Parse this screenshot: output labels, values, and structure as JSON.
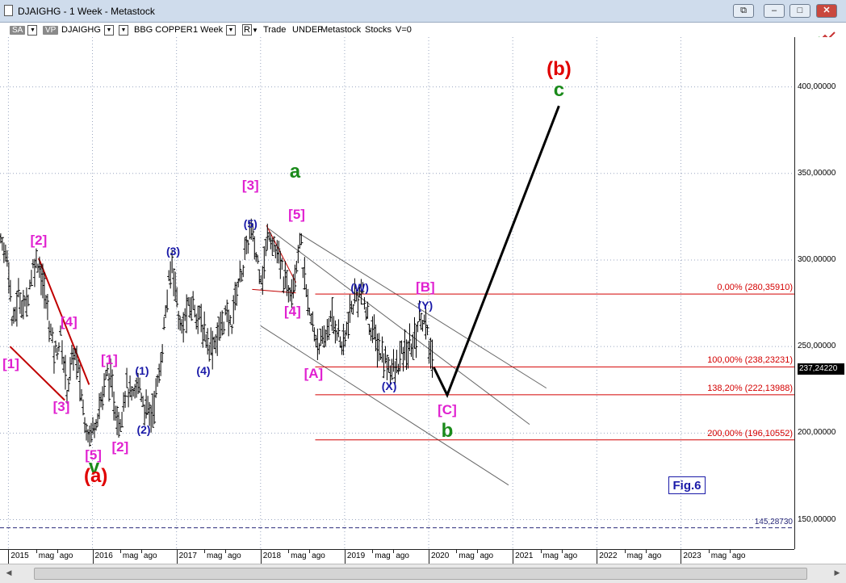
{
  "window": {
    "title": "DJAIGHG - 1 Week - Metastock"
  },
  "toolbar": {
    "sa": "SA",
    "vp": "VP",
    "symbol": "DJAIGHG",
    "name": "BBG COPPER",
    "period": "1 Week",
    "r": "R",
    "mode": "Trade",
    "undef": "UNDEF",
    "source": "Metastock",
    "type": "Stocks",
    "v": "V=0"
  },
  "chart_data": {
    "type": "bar",
    "title": "",
    "xlabel": "",
    "ylabel": "",
    "ylim": [
      140,
      425
    ],
    "xlim": [
      2014.9,
      2024.35
    ],
    "y_ticks": [
      {
        "v": 400,
        "label": "400,00000"
      },
      {
        "v": 350,
        "label": "350,00000"
      },
      {
        "v": 300,
        "label": "300,00000"
      },
      {
        "v": 250,
        "label": "250,00000"
      },
      {
        "v": 200,
        "label": "200,00000"
      },
      {
        "v": 150,
        "label": "150,00000"
      }
    ],
    "x_ticks": [
      {
        "t": 2015.0,
        "label": "2015"
      },
      {
        "t": 2015.33,
        "label": "mag"
      },
      {
        "t": 2015.58,
        "label": "ago"
      },
      {
        "t": 2016.0,
        "label": "2016"
      },
      {
        "t": 2016.33,
        "label": "mag"
      },
      {
        "t": 2016.58,
        "label": "ago"
      },
      {
        "t": 2017.0,
        "label": "2017"
      },
      {
        "t": 2017.33,
        "label": "mag"
      },
      {
        "t": 2017.58,
        "label": "ago"
      },
      {
        "t": 2018.0,
        "label": "2018"
      },
      {
        "t": 2018.33,
        "label": "mag"
      },
      {
        "t": 2018.58,
        "label": "ago"
      },
      {
        "t": 2019.0,
        "label": "2019"
      },
      {
        "t": 2019.33,
        "label": "mag"
      },
      {
        "t": 2019.58,
        "label": "ago"
      },
      {
        "t": 2020.0,
        "label": "2020"
      },
      {
        "t": 2020.33,
        "label": "mag"
      },
      {
        "t": 2020.58,
        "label": "ago"
      },
      {
        "t": 2021.0,
        "label": "2021"
      },
      {
        "t": 2021.33,
        "label": "mag"
      },
      {
        "t": 2021.58,
        "label": "ago"
      },
      {
        "t": 2022.0,
        "label": "2022"
      },
      {
        "t": 2022.33,
        "label": "mag"
      },
      {
        "t": 2022.58,
        "label": "ago"
      },
      {
        "t": 2023.0,
        "label": "2023"
      },
      {
        "t": 2023.33,
        "label": "mag"
      },
      {
        "t": 2023.58,
        "label": "ago"
      }
    ],
    "price_path": [
      [
        2014.87,
        315
      ],
      [
        2015.0,
        300
      ],
      [
        2015.05,
        260
      ],
      [
        2015.12,
        280
      ],
      [
        2015.2,
        272
      ],
      [
        2015.3,
        298
      ],
      [
        2015.36,
        300
      ],
      [
        2015.45,
        275
      ],
      [
        2015.55,
        245
      ],
      [
        2015.62,
        255
      ],
      [
        2015.7,
        225
      ],
      [
        2015.78,
        248
      ],
      [
        2015.85,
        230
      ],
      [
        2015.9,
        210
      ],
      [
        2015.97,
        198
      ],
      [
        2016.05,
        210
      ],
      [
        2016.12,
        222
      ],
      [
        2016.18,
        236
      ],
      [
        2016.25,
        220
      ],
      [
        2016.32,
        205
      ],
      [
        2016.4,
        228
      ],
      [
        2016.48,
        218
      ],
      [
        2016.55,
        230
      ],
      [
        2016.62,
        215
      ],
      [
        2016.7,
        210
      ],
      [
        2016.8,
        235
      ],
      [
        2016.88,
        275
      ],
      [
        2016.95,
        300
      ],
      [
        2017.05,
        258
      ],
      [
        2017.12,
        270
      ],
      [
        2017.2,
        275
      ],
      [
        2017.3,
        262
      ],
      [
        2017.4,
        250
      ],
      [
        2017.48,
        255
      ],
      [
        2017.58,
        268
      ],
      [
        2017.65,
        262
      ],
      [
        2017.72,
        285
      ],
      [
        2017.8,
        298
      ],
      [
        2017.88,
        318
      ],
      [
        2017.95,
        302
      ],
      [
        2018.02,
        290
      ],
      [
        2018.1,
        318
      ],
      [
        2018.18,
        305
      ],
      [
        2018.25,
        295
      ],
      [
        2018.32,
        282
      ],
      [
        2018.4,
        290
      ],
      [
        2018.47,
        315
      ],
      [
        2018.52,
        288
      ],
      [
        2018.58,
        268
      ],
      [
        2018.66,
        255
      ],
      [
        2018.74,
        250
      ],
      [
        2018.82,
        265
      ],
      [
        2018.9,
        262
      ],
      [
        2018.98,
        248
      ],
      [
        2019.04,
        264
      ],
      [
        2019.12,
        278
      ],
      [
        2019.2,
        282
      ],
      [
        2019.28,
        265
      ],
      [
        2019.36,
        255
      ],
      [
        2019.44,
        245
      ],
      [
        2019.52,
        240
      ],
      [
        2019.6,
        235
      ],
      [
        2019.68,
        245
      ],
      [
        2019.76,
        248
      ],
      [
        2019.84,
        255
      ],
      [
        2019.9,
        270
      ],
      [
        2019.96,
        262
      ],
      [
        2020.02,
        245
      ],
      [
        2020.06,
        238
      ]
    ],
    "projection": [
      [
        2020.06,
        238
      ],
      [
        2020.22,
        222
      ],
      [
        2021.55,
        389
      ]
    ],
    "levels": [
      {
        "v": 280.3591,
        "label": "0,00% (280,35910)"
      },
      {
        "v": 238.23231,
        "label": "100,00% (238,23231)"
      },
      {
        "v": 222.13988,
        "label": "138,20% (222,13988)"
      },
      {
        "v": 196.10552,
        "label": "200,00% (196,10552)"
      }
    ],
    "lowest_label": {
      "v": 145.2873,
      "label": "145,28730"
    },
    "last_price": {
      "v": 237.2422,
      "label": "237,24220"
    },
    "wave_labels": [
      {
        "t": "[1]",
        "x": 2015.03,
        "y": 240,
        "c": "mag"
      },
      {
        "t": "[2]",
        "x": 2015.36,
        "y": 311,
        "c": "mag"
      },
      {
        "t": "[3]",
        "x": 2015.63,
        "y": 215,
        "c": "mag"
      },
      {
        "t": "[4]",
        "x": 2015.72,
        "y": 264,
        "c": "mag"
      },
      {
        "t": "[5]",
        "x": 2016.01,
        "y": 187,
        "c": "mag"
      },
      {
        "t": "v",
        "x": 2016.02,
        "y": 180,
        "c": "green"
      },
      {
        "t": "(a)",
        "x": 2016.04,
        "y": 175,
        "c": "red"
      },
      {
        "t": "[1]",
        "x": 2016.2,
        "y": 242,
        "c": "mag"
      },
      {
        "t": "(1)",
        "x": 2016.59,
        "y": 236,
        "c": "blue"
      },
      {
        "t": "[2]",
        "x": 2016.33,
        "y": 192,
        "c": "mag"
      },
      {
        "t": "(2)",
        "x": 2016.61,
        "y": 202,
        "c": "blue"
      },
      {
        "t": "(3)",
        "x": 2016.96,
        "y": 305,
        "c": "blue"
      },
      {
        "t": "(4)",
        "x": 2017.32,
        "y": 236,
        "c": "blue"
      },
      {
        "t": "[3]",
        "x": 2017.88,
        "y": 343,
        "c": "mag"
      },
      {
        "t": "(5)",
        "x": 2017.88,
        "y": 321,
        "c": "blue"
      },
      {
        "t": "a",
        "x": 2018.41,
        "y": 351,
        "c": "green"
      },
      {
        "t": "[5]",
        "x": 2018.43,
        "y": 326,
        "c": "mag"
      },
      {
        "t": "[4]",
        "x": 2018.38,
        "y": 270,
        "c": "mag"
      },
      {
        "t": "[A]",
        "x": 2018.63,
        "y": 234,
        "c": "mag"
      },
      {
        "t": "(W)",
        "x": 2019.18,
        "y": 284,
        "c": "blue"
      },
      {
        "t": "(X)",
        "x": 2019.53,
        "y": 227,
        "c": "blue"
      },
      {
        "t": "[B]",
        "x": 2019.96,
        "y": 284,
        "c": "mag"
      },
      {
        "t": "(Y)",
        "x": 2019.96,
        "y": 274,
        "c": "blue"
      },
      {
        "t": "[C]",
        "x": 2020.22,
        "y": 213,
        "c": "mag"
      },
      {
        "t": "b",
        "x": 2020.22,
        "y": 201,
        "c": "green"
      },
      {
        "t": "(b)",
        "x": 2021.55,
        "y": 410,
        "c": "red"
      },
      {
        "t": "c",
        "x": 2021.55,
        "y": 398,
        "c": "green"
      }
    ],
    "annotation": "Fig.6"
  },
  "colors": {
    "bars": "#000000",
    "fib_lines": "#d40000",
    "channel": "#666666",
    "wedge": "#c00000",
    "projection": "#000000",
    "magenta": "#e020d0",
    "blue": "#1a1aa8",
    "green": "#1a8a1a",
    "red": "#e00000"
  }
}
